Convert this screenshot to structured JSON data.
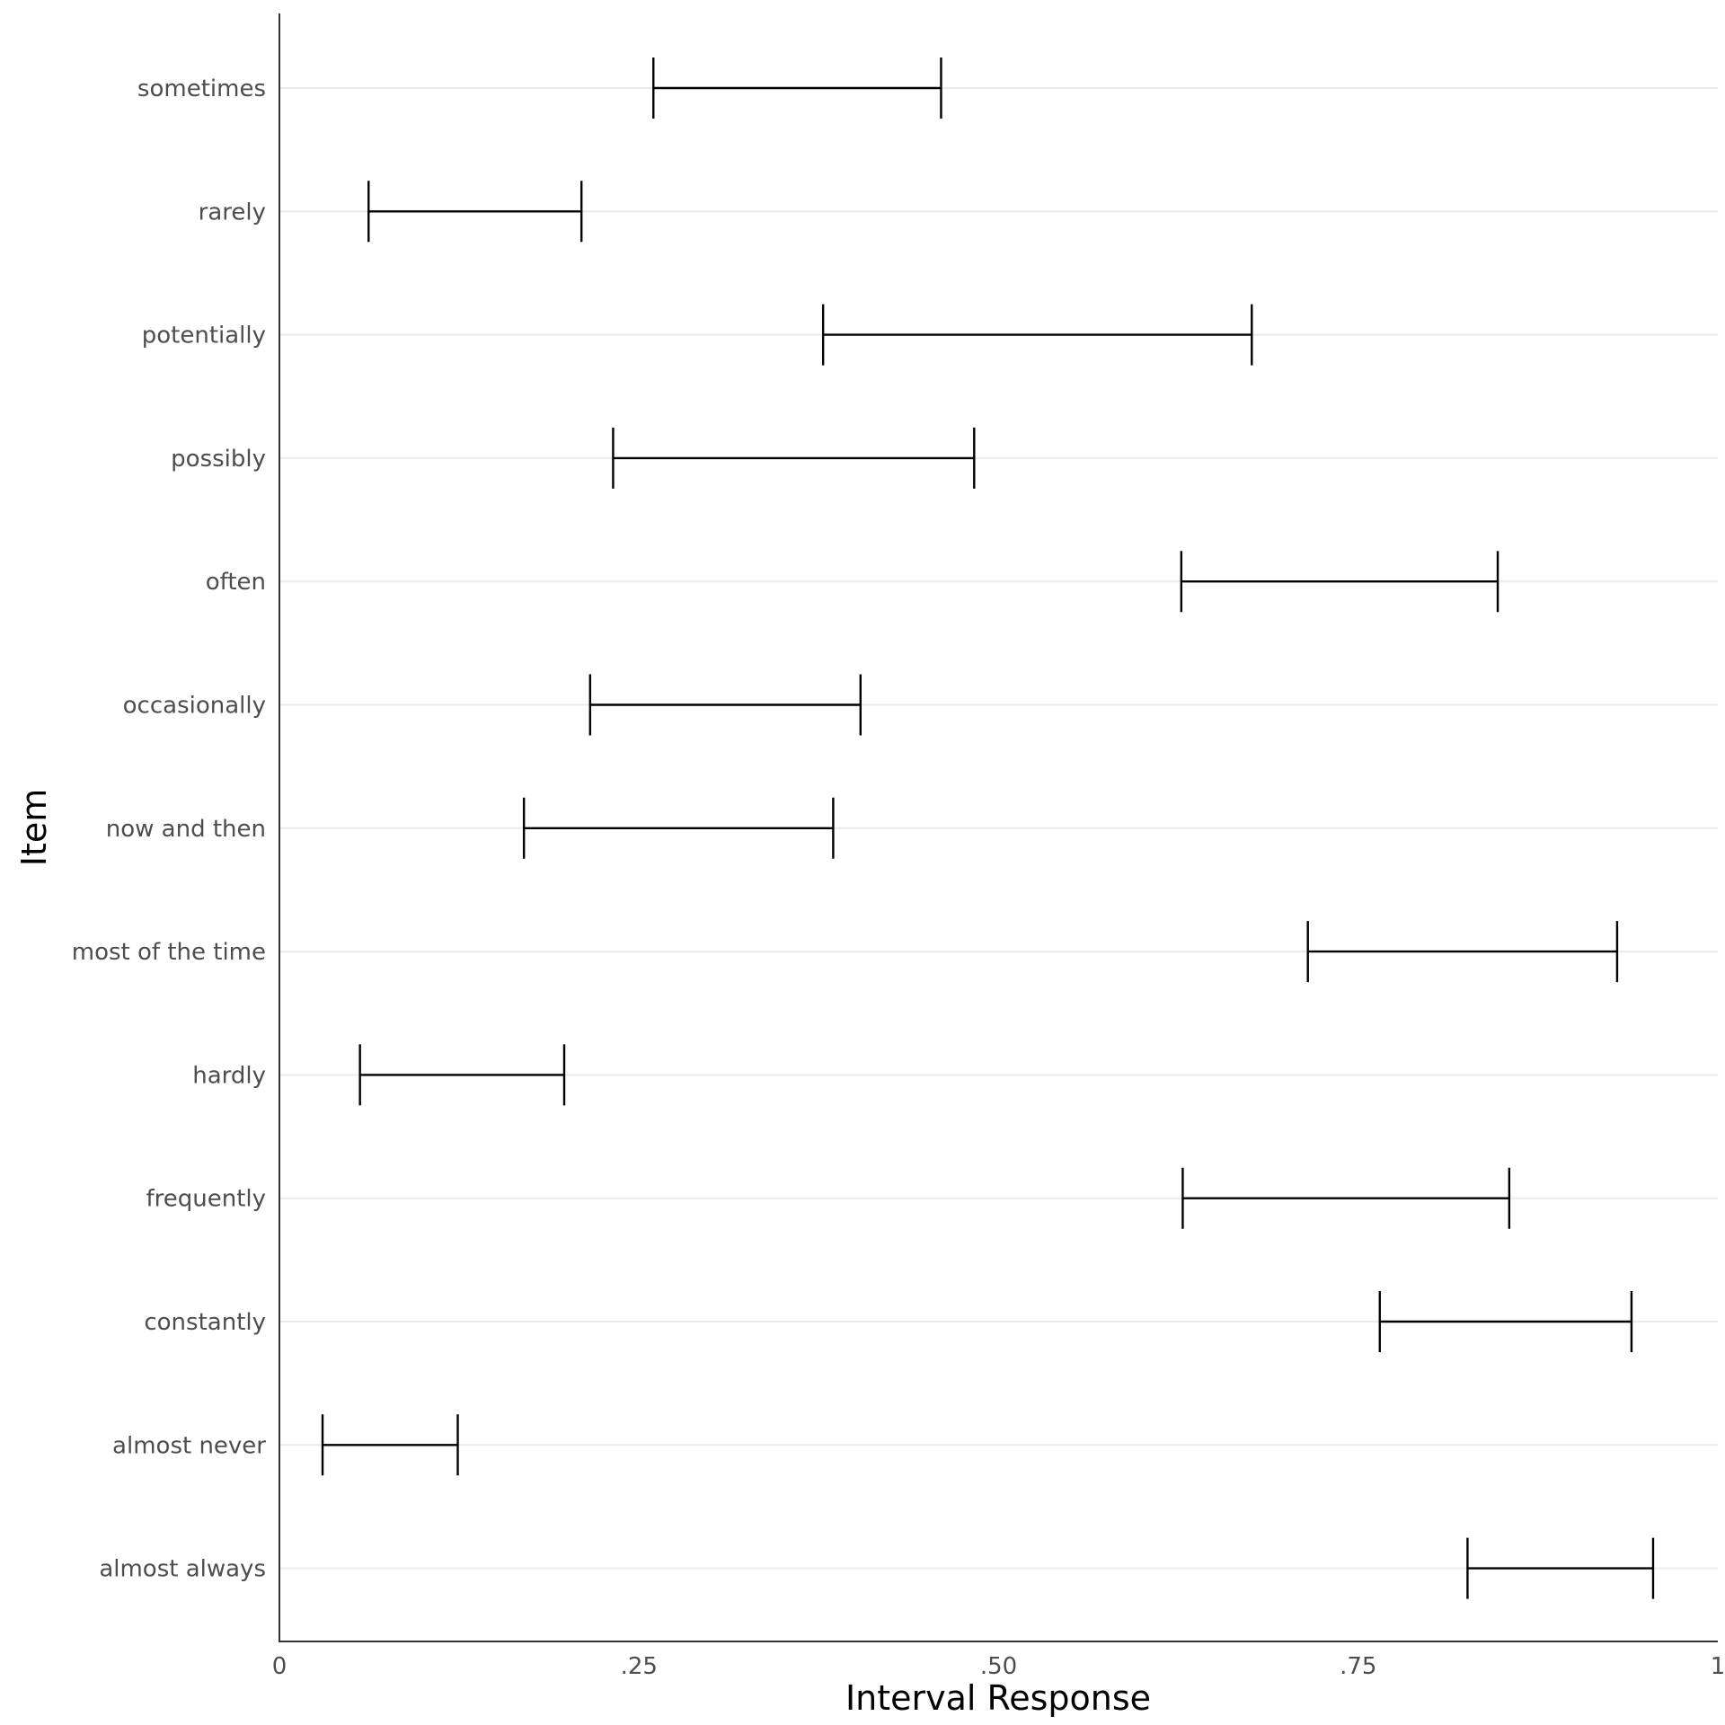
{
  "chart_data": {
    "type": "errorbar",
    "title": "",
    "xlabel": "Interval Response",
    "ylabel": "Item",
    "xlim": [
      0,
      1
    ],
    "x_ticks": [
      {
        "value": 0,
        "label": "0"
      },
      {
        "value": 0.25,
        "label": ".25"
      },
      {
        "value": 0.5,
        "label": ".50"
      },
      {
        "value": 0.75,
        "label": ".75"
      },
      {
        "value": 1,
        "label": "1"
      }
    ],
    "grid": "horizontal-major",
    "items": [
      {
        "label": "sometimes",
        "low": 0.26,
        "high": 0.46
      },
      {
        "label": "rarely",
        "low": 0.062,
        "high": 0.21
      },
      {
        "label": "potentially",
        "low": 0.378,
        "high": 0.676
      },
      {
        "label": "possibly",
        "low": 0.232,
        "high": 0.483
      },
      {
        "label": "often",
        "low": 0.627,
        "high": 0.847
      },
      {
        "label": "occasionally",
        "low": 0.216,
        "high": 0.404
      },
      {
        "label": "now and then",
        "low": 0.17,
        "high": 0.385
      },
      {
        "label": "most of the time",
        "low": 0.715,
        "high": 0.93
      },
      {
        "label": "hardly",
        "low": 0.056,
        "high": 0.198
      },
      {
        "label": "frequently",
        "low": 0.628,
        "high": 0.855
      },
      {
        "label": "constantly",
        "low": 0.765,
        "high": 0.94
      },
      {
        "label": "almost never",
        "low": 0.03,
        "high": 0.124
      },
      {
        "label": "almost always",
        "low": 0.826,
        "high": 0.955
      }
    ]
  }
}
